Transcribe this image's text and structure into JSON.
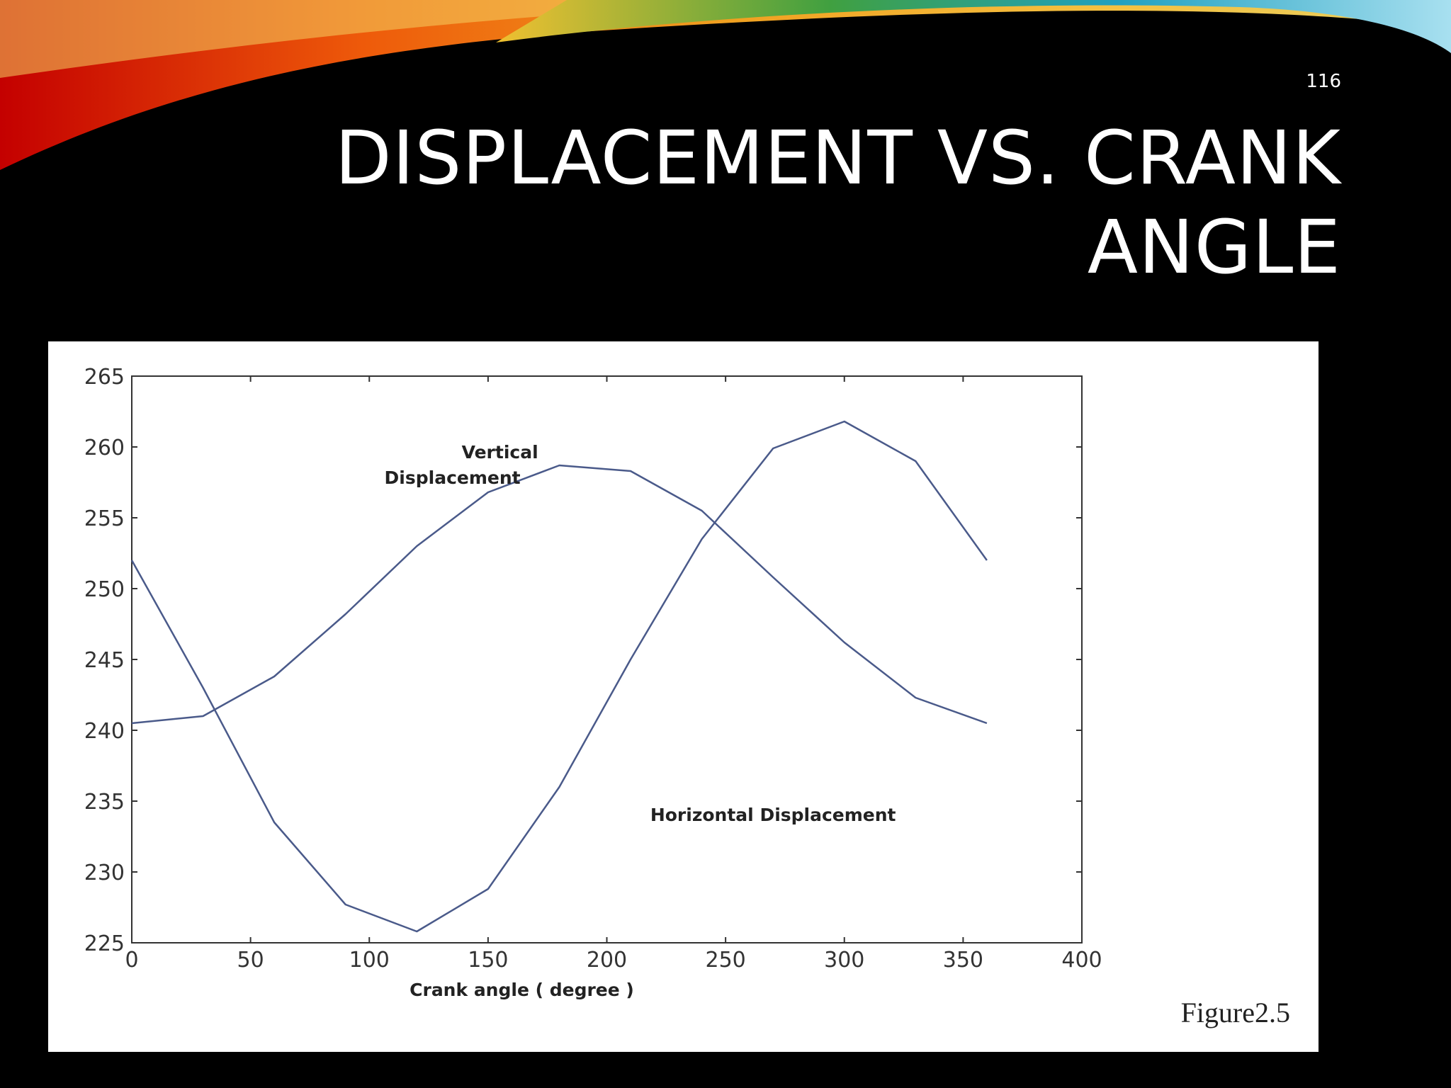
{
  "slide": {
    "page_number": "116",
    "title": "DISPLACEMENT VS. CRANK ANGLE",
    "figure_caption": "Figure2.5"
  },
  "colors": {
    "background": "#000000",
    "title": "#ffffff",
    "panel": "#ffffff",
    "curve": "#4a5a8a",
    "axis": "#333333"
  },
  "chart_data": {
    "type": "line",
    "title": "",
    "xlabel": "Crank angle ( degree )",
    "ylabel": "",
    "xlim": [
      0,
      400
    ],
    "ylim": [
      225,
      265
    ],
    "xticks": [
      0,
      50,
      100,
      150,
      200,
      250,
      300,
      350,
      400
    ],
    "yticks": [
      225,
      230,
      235,
      240,
      245,
      250,
      255,
      260,
      265
    ],
    "grid": false,
    "series": [
      {
        "name": "Vertical Displacement",
        "x": [
          0,
          30,
          60,
          90,
          120,
          150,
          180,
          210,
          240,
          270,
          300,
          330,
          360
        ],
        "y": [
          240.5,
          241,
          243.8,
          248.2,
          253,
          256.8,
          258.7,
          258.3,
          255.5,
          250.8,
          246.2,
          242.3,
          240.5
        ]
      },
      {
        "name": "Horizontal Displacement",
        "x": [
          0,
          30,
          60,
          90,
          120,
          150,
          180,
          210,
          240,
          270,
          300,
          330,
          360
        ],
        "y": [
          252,
          243,
          233.5,
          227.7,
          225.8,
          228.8,
          236,
          245,
          253.5,
          259.9,
          261.8,
          259,
          252
        ]
      }
    ],
    "annotations": [
      {
        "text": "Vertical",
        "x": 155,
        "y": 259.2
      },
      {
        "text": "Displacement",
        "x": 135,
        "y": 257.4
      },
      {
        "text": "Horizontal Displacement",
        "x": 270,
        "y": 233.6
      }
    ]
  }
}
